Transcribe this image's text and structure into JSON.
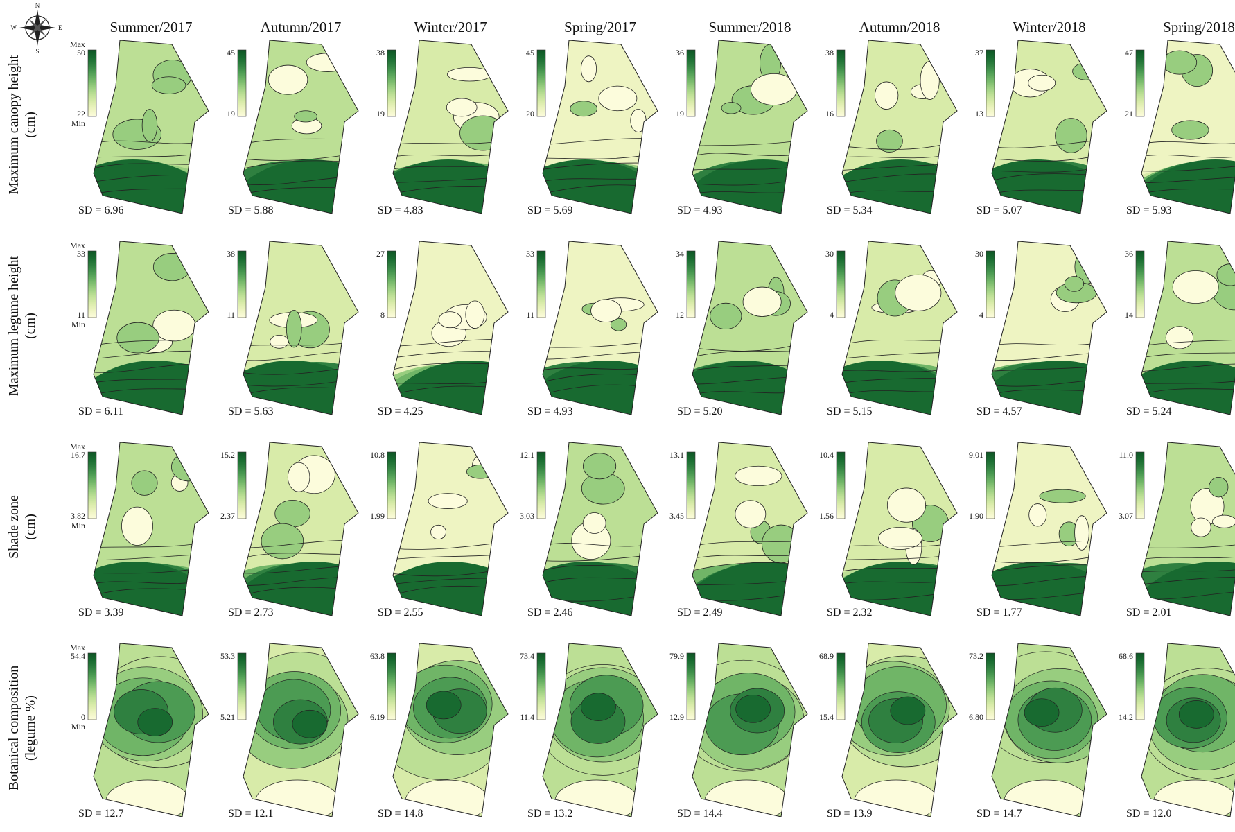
{
  "compass": {
    "n": "N",
    "s": "S",
    "e": "E",
    "w": "W"
  },
  "legend": {
    "max": "Max",
    "min": "Min"
  },
  "columns": [
    "Summer/2017",
    "Autumn/2017",
    "Winter/2017",
    "Spring/2017",
    "Summer/2018",
    "Autumn/2018",
    "Winter/2018",
    "Spring/2018"
  ],
  "rows": [
    {
      "label": [
        "Maximum canopy height",
        "(cm)"
      ],
      "max": [
        "50",
        "45",
        "38",
        "45",
        "36",
        "38",
        "37",
        "47"
      ],
      "min": [
        "22",
        "19",
        "19",
        "20",
        "19",
        "16",
        "13",
        "21"
      ],
      "sd": [
        "SD = 6.96",
        "SD = 5.88",
        "SD = 4.83",
        "SD = 5.69",
        "SD = 4.93",
        "SD = 5.34",
        "SD = 5.07",
        "SD = 5.93"
      ]
    },
    {
      "label": [
        "Maximum legume height",
        "(cm)"
      ],
      "max": [
        "33",
        "38",
        "27",
        "33",
        "34",
        "30",
        "30",
        "36"
      ],
      "min": [
        "11",
        "11",
        "8",
        "11",
        "12",
        "4",
        "4",
        "14"
      ],
      "sd": [
        "SD = 6.11",
        "SD = 5.63",
        "SD = 4.25",
        "SD = 4.93",
        "SD = 5.20",
        "SD = 5.15",
        "SD = 4.57",
        "SD = 5.24"
      ]
    },
    {
      "label": [
        "Shade zone",
        "(cm)"
      ],
      "max": [
        "16.7",
        "15.2",
        "10.8",
        "12.1",
        "13.1",
        "10.4",
        "9.01",
        "11.0"
      ],
      "min": [
        "3.82",
        "2.37",
        "1.99",
        "3.03",
        "3.45",
        "1.56",
        "1.90",
        "3.07"
      ],
      "sd": [
        "SD = 3.39",
        "SD = 2.73",
        "SD = 2.55",
        "SD = 2.46",
        "SD = 2.49",
        "SD = 2.32",
        "SD = 1.77",
        "SD = 2.01"
      ]
    },
    {
      "label": [
        "Botanical composition",
        "(legume %)"
      ],
      "max": [
        "54.4",
        "53.3",
        "63.8",
        "73.4",
        "79.9",
        "68.9",
        "73.2",
        "68.6"
      ],
      "min": [
        "0",
        "5.21",
        "6.19",
        "11.4",
        "12.9",
        "15.4",
        "6.80",
        "14.2"
      ],
      "sd": [
        "SD = 12.7",
        "SD = 12.1",
        "SD = 14.8",
        "SD = 13.2",
        "SD = 14.4",
        "SD = 13.9",
        "SD = 14.7",
        "SD = 12.0"
      ]
    }
  ]
}
